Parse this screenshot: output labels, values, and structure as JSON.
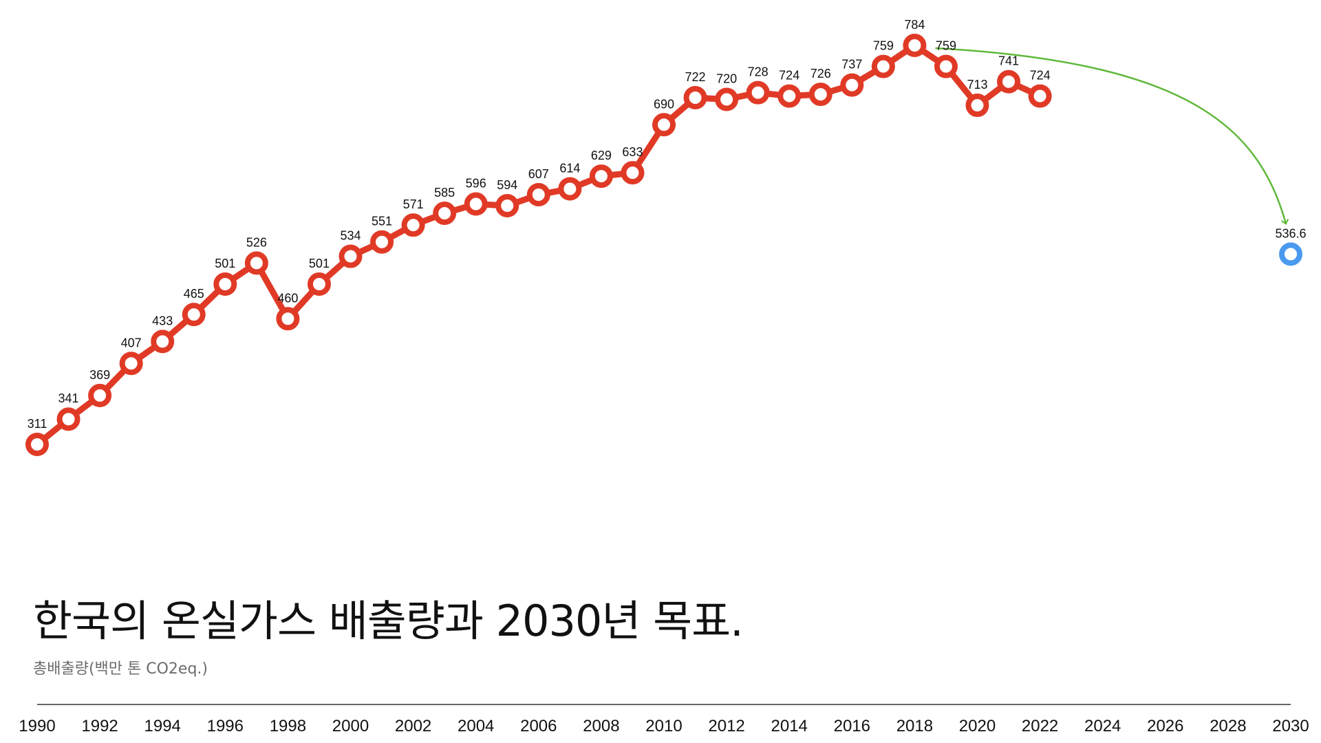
{
  "title": "한국의 온실가스 배출량과 2030년 목표.",
  "subtitle": "총배출량(백만 톤 CO2eq.)",
  "colors": {
    "series": "#e03a26",
    "target": "#4a9af0",
    "arrow": "#5fb83a",
    "axis": "#333333"
  },
  "chart_data": {
    "type": "line",
    "title": "한국의 온실가스 배출량과 2030년 목표.",
    "ylabel": "총배출량(백만 톤 CO2eq.)",
    "xlabel": "",
    "xlim": [
      1990,
      2030
    ],
    "ylim": [
      311,
      784
    ],
    "x_ticks": [
      1990,
      1992,
      1994,
      1996,
      1998,
      2000,
      2002,
      2004,
      2006,
      2008,
      2010,
      2012,
      2014,
      2016,
      2018,
      2020,
      2022,
      2024,
      2026,
      2028,
      2030
    ],
    "grid": false,
    "series": [
      {
        "x": [
          1990,
          1991,
          1992,
          1993,
          1994,
          1995,
          1996,
          1997,
          1998,
          1999,
          2000,
          2001,
          2002,
          2003,
          2004,
          2005,
          2006,
          2007,
          2008,
          2009,
          2010,
          2011,
          2012,
          2013,
          2014,
          2015,
          2016,
          2017,
          2018,
          2019,
          2020,
          2021,
          2022
        ],
        "values": [
          311,
          341,
          369,
          407,
          433,
          465,
          501,
          526,
          460,
          501,
          534,
          551,
          571,
          585,
          596,
          594,
          607,
          614,
          629,
          633,
          690,
          722,
          720,
          728,
          724,
          726,
          737,
          759,
          784,
          759,
          713,
          741,
          724
        ]
      }
    ],
    "target": {
      "x": 2030,
      "value": 536.6,
      "label": "536.6"
    },
    "annotation": {
      "type": "arrow",
      "from_year": 2018,
      "to_year": 2030
    }
  }
}
